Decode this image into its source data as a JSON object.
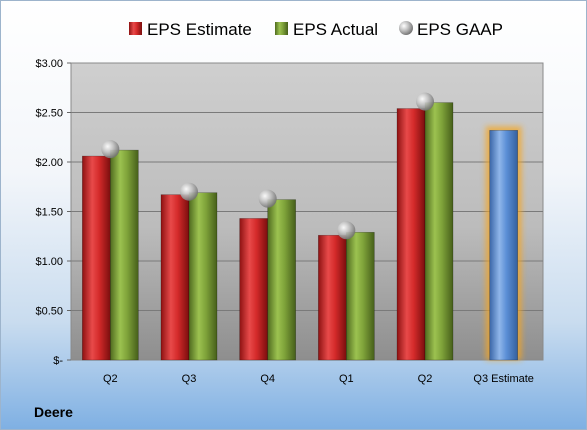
{
  "company": "Deere",
  "chart_data": {
    "type": "bar",
    "categories": [
      "Q2",
      "Q3",
      "Q4",
      "Q1",
      "Q2",
      "Q3 Estimate"
    ],
    "series": [
      {
        "name": "EPS Estimate",
        "color": "#d42a2a",
        "values": [
          2.06,
          1.67,
          1.43,
          1.26,
          2.54,
          null
        ]
      },
      {
        "name": "EPS Actual",
        "color": "#7fa33a",
        "values": [
          2.12,
          1.69,
          1.62,
          1.29,
          2.6,
          null
        ]
      },
      {
        "name": "EPS GAAP",
        "color": "#b8b8b8",
        "marker": "sphere",
        "values": [
          2.13,
          1.7,
          1.63,
          1.31,
          2.61,
          null
        ]
      },
      {
        "name": "",
        "color": "#5b8fd6",
        "highlight": "#f5a623",
        "values": [
          null,
          null,
          null,
          null,
          null,
          2.32
        ]
      }
    ],
    "yticks": [
      "$3.00",
      "$2.50",
      "$2.00",
      "$1.50",
      "$1.00",
      "$0.50",
      "$-"
    ],
    "ylim": [
      0,
      3.0
    ],
    "grid": true,
    "legend_position": "top"
  }
}
